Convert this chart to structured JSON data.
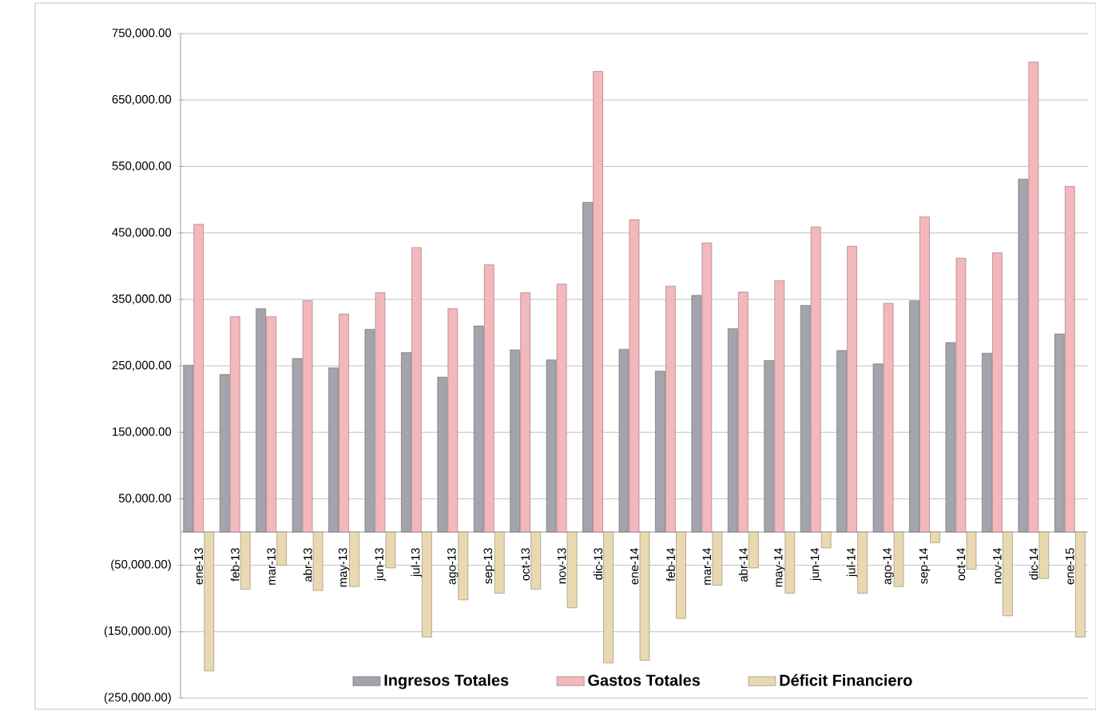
{
  "chart_data": {
    "type": "bar",
    "categories": [
      "ene-13",
      "feb-13",
      "mar-13",
      "abr-13",
      "may-13",
      "jun-13",
      "jul-13",
      "ago-13",
      "sep-13",
      "oct-13",
      "nov-13",
      "dic-13",
      "ene-14",
      "feb-14",
      "mar-14",
      "abr-14",
      "may-14",
      "jun-14",
      "jul-14",
      "ago-14",
      "sep-14",
      "oct-14",
      "nov-14",
      "dic-14",
      "ene-15"
    ],
    "series": [
      {
        "name": "Ingresos Totales",
        "color": "#a4a4ac",
        "values": [
          251000,
          237000,
          336000,
          261000,
          247000,
          305000,
          270000,
          233000,
          310000,
          274000,
          259000,
          496000,
          275000,
          242000,
          356000,
          306000,
          258000,
          341000,
          273000,
          253000,
          348000,
          285000,
          269000,
          531000,
          298000
        ]
      },
      {
        "name": "Gastos Totales",
        "color": "#f2b8bc",
        "values": [
          463000,
          324000,
          324000,
          348000,
          328000,
          360000,
          428000,
          336000,
          402000,
          360000,
          373000,
          693000,
          470000,
          370000,
          435000,
          361000,
          378000,
          459000,
          430000,
          344000,
          474000,
          412000,
          420000,
          707000,
          520000
        ]
      },
      {
        "name": "Déficit Financiero",
        "color": "#e8d9b0",
        "values": [
          -209000,
          -86000,
          -50000,
          -88000,
          -82000,
          -54000,
          -158000,
          -102000,
          -92000,
          -86000,
          -114000,
          -197000,
          -193000,
          -130000,
          -80000,
          -54000,
          -92000,
          -24000,
          -92000,
          -82000,
          -16000,
          -56000,
          -126000,
          -70000,
          -158000
        ]
      }
    ],
    "ylim": [
      -250000,
      750000
    ],
    "yticks": [
      {
        "value": 750000,
        "label": "750,000.00"
      },
      {
        "value": 650000,
        "label": "650,000.00"
      },
      {
        "value": 550000,
        "label": "550,000.00"
      },
      {
        "value": 450000,
        "label": "450,000.00"
      },
      {
        "value": 350000,
        "label": "350,000.00"
      },
      {
        "value": 250000,
        "label": "250,000.00"
      },
      {
        "value": 150000,
        "label": "150,000.00"
      },
      {
        "value": 50000,
        "label": "50,000.00"
      },
      {
        "value": -50000,
        "label": "(50,000.00)"
      },
      {
        "value": -150000,
        "label": "(150,000.00)"
      },
      {
        "value": -250000,
        "label": "(250,000.00)"
      }
    ],
    "grid": "y",
    "legend": "bottom"
  }
}
